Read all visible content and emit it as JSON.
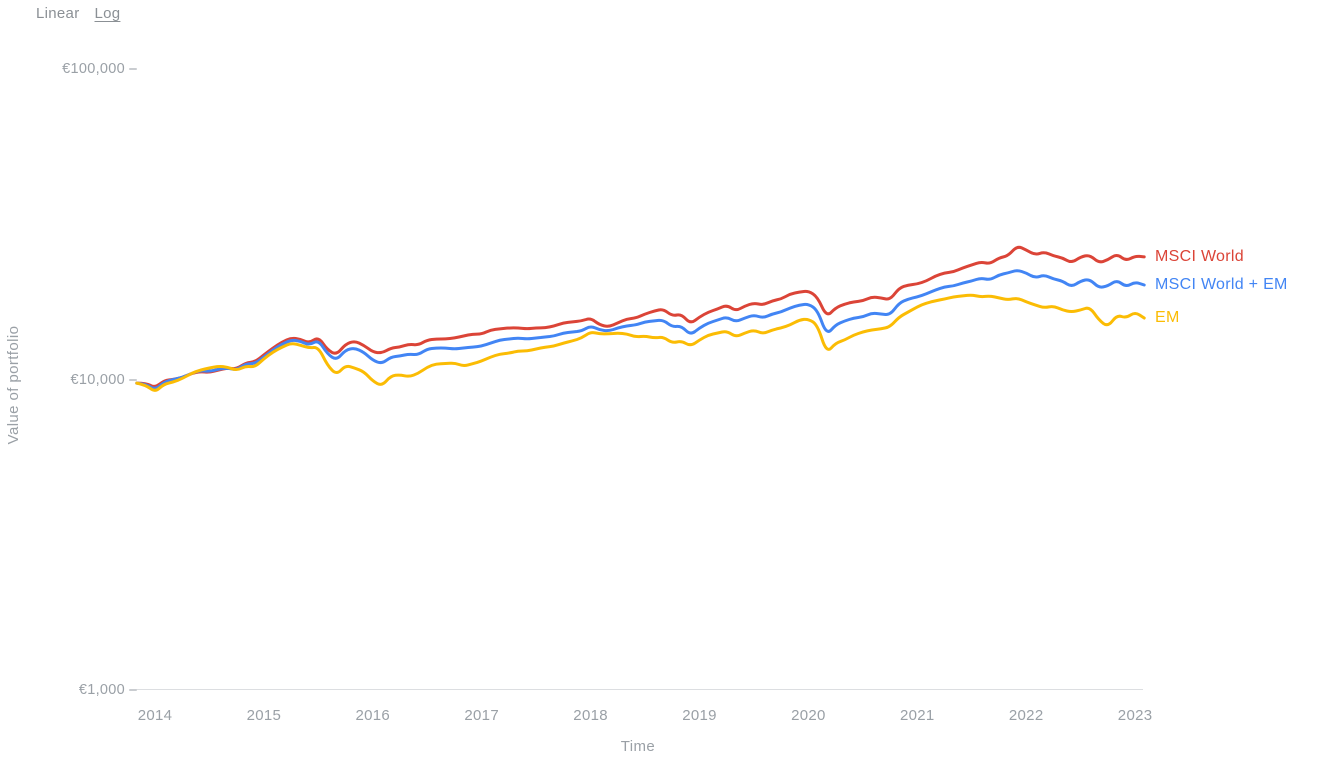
{
  "controls": {
    "linear_label": "Linear",
    "log_label": "Log",
    "selected": "Log"
  },
  "y_axis": {
    "title": "Value of portfolio",
    "tick_labels": [
      "€100,000",
      "€10,000",
      "€1,000"
    ],
    "tick_values": [
      100000,
      10000,
      1000
    ]
  },
  "x_axis": {
    "title": "Time",
    "tick_labels": [
      "2014",
      "2015",
      "2016",
      "2017",
      "2018",
      "2019",
      "2020",
      "2021",
      "2022",
      "2023"
    ]
  },
  "colors": {
    "msci_world": "#db4437",
    "msci_world_em": "#4285f4",
    "em": "#fbbc04",
    "tick_text": "#9aa0a6",
    "axis_line": "#dcdee1"
  },
  "chart_data": {
    "type": "line",
    "title": "",
    "xlabel": "Time",
    "ylabel": "Value of portfolio",
    "y_scale": "log",
    "ylim": [
      1000,
      100000
    ],
    "grid": false,
    "legend_position": "right-end-of-lines",
    "currency": "EUR",
    "start_date": "2013-11",
    "end_date": "2023-02",
    "frequency": "monthly",
    "x_tick_years": [
      2014,
      2015,
      2016,
      2017,
      2018,
      2019,
      2020,
      2021,
      2022,
      2023
    ],
    "series": [
      {
        "name": "MSCI World",
        "color": "#db4437",
        "values": [
          9740,
          9740,
          9400,
          9920,
          10000,
          10150,
          10460,
          10610,
          10540,
          10730,
          10890,
          10810,
          11310,
          11390,
          12000,
          12630,
          13200,
          13600,
          13500,
          13100,
          13710,
          12450,
          12000,
          13000,
          13300,
          12900,
          12250,
          12160,
          12630,
          12720,
          13000,
          12900,
          13400,
          13500,
          13500,
          13600,
          13810,
          14000,
          14000,
          14440,
          14550,
          14660,
          14660,
          14550,
          14660,
          14660,
          14880,
          15210,
          15330,
          15440,
          15780,
          14990,
          14770,
          15210,
          15670,
          15780,
          16250,
          16620,
          16870,
          16020,
          16250,
          15100,
          15900,
          16500,
          16870,
          17380,
          16620,
          17250,
          17640,
          17380,
          17910,
          18170,
          18860,
          19140,
          19280,
          18450,
          15900,
          17010,
          17510,
          17780,
          17910,
          18450,
          18310,
          18040,
          19720,
          20160,
          20310,
          20760,
          21560,
          22040,
          22210,
          22880,
          23390,
          23920,
          23570,
          24640,
          25010,
          26930,
          26130,
          25190,
          25750,
          25010,
          24640,
          23740,
          24820,
          25190,
          23740,
          24280,
          25380,
          24100,
          25010,
          24820
        ]
      },
      {
        "name": "MSCI World + EM",
        "color": "#4285f4",
        "values": [
          9740,
          9670,
          9250,
          9810,
          10000,
          10150,
          10460,
          10690,
          10610,
          10810,
          10890,
          10730,
          11240,
          11240,
          11820,
          12450,
          13000,
          13400,
          13300,
          12900,
          13400,
          12080,
          11540,
          12450,
          12630,
          12250,
          11540,
          11240,
          11820,
          11900,
          12080,
          12000,
          12540,
          12630,
          12630,
          12540,
          12630,
          12720,
          12810,
          13100,
          13400,
          13500,
          13600,
          13500,
          13600,
          13710,
          13810,
          14120,
          14230,
          14330,
          14880,
          14440,
          14330,
          14660,
          14880,
          14990,
          15330,
          15440,
          15550,
          14770,
          14880,
          13910,
          14660,
          15210,
          15550,
          15900,
          15330,
          15780,
          16130,
          15780,
          16250,
          16500,
          17010,
          17380,
          17510,
          16740,
          13910,
          14990,
          15440,
          15780,
          15900,
          16370,
          16250,
          16130,
          17640,
          18170,
          18450,
          18860,
          19430,
          19870,
          20010,
          20460,
          20760,
          21230,
          20910,
          21720,
          22040,
          22530,
          22040,
          21230,
          21720,
          21070,
          20760,
          19870,
          20760,
          21070,
          19720,
          20010,
          20910,
          19870,
          20610,
          20160
        ]
      },
      {
        "name": "EM",
        "color": "#fbbc04",
        "values": [
          9740,
          9600,
          9100,
          9670,
          9810,
          10070,
          10460,
          10730,
          10890,
          11040,
          10960,
          10690,
          11040,
          10960,
          11670,
          12250,
          12720,
          13100,
          12900,
          12630,
          12720,
          11100,
          10350,
          11100,
          10890,
          10610,
          9880,
          9530,
          10280,
          10350,
          10200,
          10460,
          10960,
          11240,
          11240,
          11310,
          11040,
          11240,
          11470,
          11820,
          12080,
          12160,
          12350,
          12350,
          12540,
          12720,
          12810,
          13100,
          13310,
          13600,
          14230,
          14020,
          14020,
          14120,
          14020,
          13710,
          13810,
          13600,
          13710,
          13100,
          13310,
          12810,
          13400,
          13910,
          14120,
          14330,
          13710,
          14120,
          14440,
          14020,
          14440,
          14660,
          14990,
          15550,
          15670,
          14990,
          12160,
          13100,
          13400,
          13910,
          14230,
          14440,
          14550,
          14770,
          15900,
          16500,
          17130,
          17640,
          17910,
          18170,
          18450,
          18590,
          18720,
          18450,
          18590,
          18310,
          18040,
          18310,
          17780,
          17380,
          17010,
          17250,
          16740,
          16500,
          16740,
          17130,
          15550,
          14770,
          16130,
          15780,
          16500,
          15780
        ]
      }
    ]
  }
}
